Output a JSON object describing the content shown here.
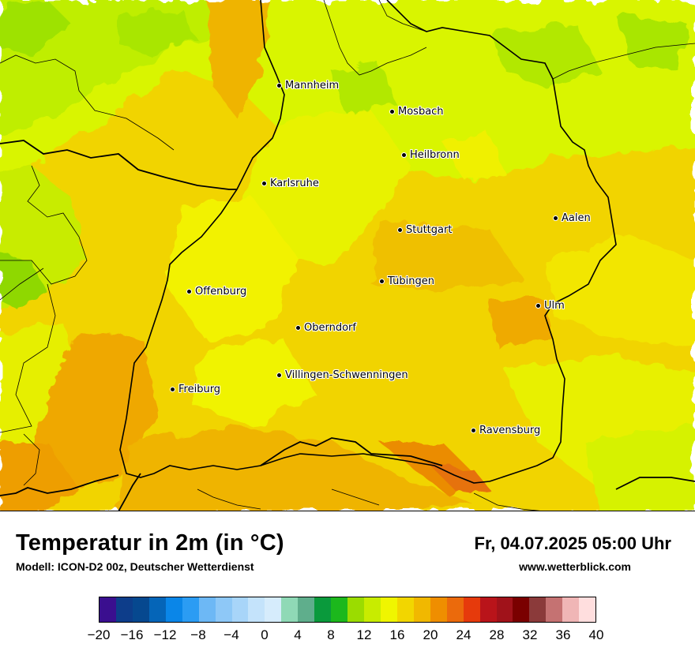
{
  "map": {
    "cities": [
      {
        "name": "Mannheim"
      },
      {
        "name": "Mosbach"
      },
      {
        "name": "Heilbronn"
      },
      {
        "name": "Karlsruhe"
      },
      {
        "name": "Aalen"
      },
      {
        "name": "Stuttgart"
      },
      {
        "name": "Tübingen"
      },
      {
        "name": "Offenburg"
      },
      {
        "name": "Ulm"
      },
      {
        "name": "Oberndorf"
      },
      {
        "name": "Villingen-Schwenningen"
      },
      {
        "name": "Freiburg"
      },
      {
        "name": "Ravensburg"
      }
    ]
  },
  "footer": {
    "title": "Temperatur in 2m (in °C)",
    "subtitle": "Modell: ICON-D2 00z, Deutscher Wetterdienst",
    "datetime": "Fr, 04.07.2025 05:00 Uhr",
    "website": "www.wetterblick.com"
  },
  "legend": {
    "unit": "°C",
    "min": -20,
    "max": 40,
    "step": 2,
    "colors": [
      "#3a0f8f",
      "#0d3d8a",
      "#06488f",
      "#0565b8",
      "#0a86e8",
      "#2b9cf3",
      "#6db8f5",
      "#8ec8f7",
      "#a8d5f9",
      "#c4e3fb",
      "#d6ecfc",
      "#8fd9b6",
      "#5fae8c",
      "#0a9a3c",
      "#1cb81c",
      "#9bdc00",
      "#c8ec00",
      "#f0f500",
      "#f2d600",
      "#f1b800",
      "#ef8e00",
      "#eb6a0c",
      "#e63a0c",
      "#b9141a",
      "#a0121a",
      "#7a0000",
      "#8b3a3a",
      "#c57272",
      "#f0b6b6",
      "#ffdede"
    ],
    "tick_labels": [
      "−20",
      "−16",
      "−12",
      "−8",
      "−4",
      "0",
      "4",
      "8",
      "12",
      "16",
      "20",
      "24",
      "28",
      "32",
      "36",
      "40"
    ]
  },
  "colors": {
    "green": "#a9e600",
    "lime": "#d9f500",
    "yellow": "#f2f200",
    "gold": "#f1d400",
    "orange": "#efb400",
    "dark_orange": "#eb8c00"
  }
}
